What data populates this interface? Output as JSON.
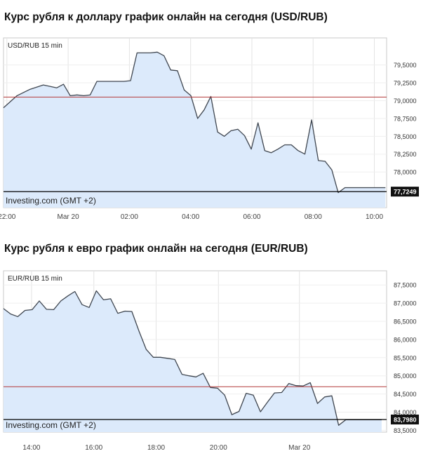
{
  "charts": [
    {
      "title": "Курс рубля к доллару график онлайн на сегодня (USD/RUB)",
      "instrument_label": "USD/RUB 15 min",
      "watermark": "Investing.com (GMT +2)",
      "current_value_label": "77,7249",
      "colors": {
        "line": "#3f4650",
        "fill": "#dceafb",
        "ref_line": "#b33a3a",
        "grid": "#e3e3e3"
      }
    },
    {
      "title": "Курс рубля к евро график онлайн на сегодня (EUR/RUB)",
      "instrument_label": "EUR/RUB 15 min",
      "watermark": "Investing.com (GMT +2)",
      "current_value_label": "83,7980",
      "colors": {
        "line": "#3f4650",
        "fill": "#dceafb",
        "ref_line": "#b33a3a",
        "grid": "#e3e3e3"
      }
    }
  ],
  "chart_data": [
    {
      "type": "area",
      "title": "Курс рубля к доллару график онлайн на сегодня (USD/RUB)",
      "series_label": "USD/RUB 15 min",
      "xlim": [
        -0.11,
        12.4
      ],
      "ylim": [
        77.5,
        79.88
      ],
      "x_ticks": [
        {
          "x": 0,
          "label": "22:00"
        },
        {
          "x": 2,
          "label": "Mar 20"
        },
        {
          "x": 4,
          "label": "02:00"
        },
        {
          "x": 6,
          "label": "04:00"
        },
        {
          "x": 8,
          "label": "06:00"
        },
        {
          "x": 10,
          "label": "08:00"
        },
        {
          "x": 12,
          "label": "10:00"
        }
      ],
      "y_ticks": [
        78.0,
        78.25,
        78.5,
        78.75,
        79.0,
        79.25,
        79.5
      ],
      "y_tick_labels": [
        "78,0000",
        "78,2500",
        "78,5000",
        "78,7500",
        "79,0000",
        "79,2500",
        "79,5000"
      ],
      "reference_line": 79.05,
      "last_value": 77.7249,
      "x": [
        -0.11,
        0.33,
        0.76,
        1.19,
        1.41,
        1.63,
        1.85,
        2.07,
        2.29,
        2.51,
        2.72,
        2.94,
        3.16,
        3.38,
        3.6,
        3.82,
        4.04,
        4.25,
        4.47,
        4.69,
        4.91,
        5.13,
        5.35,
        5.57,
        5.79,
        6.01,
        6.23,
        6.44,
        6.66,
        6.88,
        7.1,
        7.32,
        7.54,
        7.76,
        7.98,
        8.2,
        8.42,
        8.63,
        8.85,
        9.07,
        9.29,
        9.51,
        9.73,
        9.95,
        10.17,
        10.39,
        10.61,
        10.82,
        11.04,
        11.26,
        11.48,
        11.7,
        11.92,
        12.14,
        12.36
      ],
      "y": [
        78.9,
        79.07,
        79.16,
        79.22,
        79.2,
        79.18,
        79.23,
        79.07,
        79.08,
        79.07,
        79.08,
        79.27,
        79.27,
        79.27,
        79.27,
        79.27,
        79.28,
        79.67,
        79.67,
        79.67,
        79.68,
        79.63,
        79.43,
        79.42,
        79.15,
        79.07,
        78.75,
        78.87,
        79.06,
        78.56,
        78.5,
        78.58,
        78.6,
        78.51,
        78.32,
        78.69,
        78.3,
        78.27,
        78.32,
        78.38,
        78.38,
        78.3,
        78.25,
        78.73,
        78.16,
        78.15,
        78.03,
        77.71,
        77.78,
        77.78,
        77.78,
        77.78,
        77.78,
        77.78,
        77.78
      ]
    },
    {
      "type": "area",
      "title": "Курс рубля к евро график онлайн на сегодня (EUR/RUB)",
      "series_label": "EUR/RUB 15 min",
      "xlim": [
        -0.9,
        11.4
      ],
      "ylim": [
        83.45,
        87.89
      ],
      "x_ticks": [
        {
          "x": 0,
          "label": "14:00"
        },
        {
          "x": 2,
          "label": "16:00"
        },
        {
          "x": 4,
          "label": "18:00"
        },
        {
          "x": 6,
          "label": "20:00"
        },
        {
          "x": 8.6,
          "label": "Mar 20"
        }
      ],
      "y_ticks": [
        83.5,
        84.0,
        84.5,
        85.0,
        85.5,
        86.0,
        86.5,
        87.0,
        87.5
      ],
      "y_tick_labels": [
        "83,5000",
        "84,0000",
        "84,5000",
        "85,0000",
        "85,5000",
        "86,0000",
        "86,5000",
        "87,0000",
        "87,5000"
      ],
      "reference_line": 84.7,
      "last_value": 83.798,
      "x": [
        -0.9,
        -0.67,
        -0.44,
        -0.21,
        0.02,
        0.25,
        0.48,
        0.71,
        0.94,
        1.17,
        1.39,
        1.62,
        1.85,
        2.08,
        2.31,
        2.54,
        2.77,
        3.0,
        3.22,
        3.45,
        3.68,
        3.91,
        4.14,
        4.37,
        4.6,
        4.83,
        5.06,
        5.28,
        5.51,
        5.74,
        5.97,
        6.2,
        6.43,
        6.66,
        6.89,
        7.12,
        7.35,
        7.57,
        7.8,
        8.03,
        8.26,
        8.49,
        8.72,
        8.95,
        9.18,
        9.41,
        9.64,
        9.86,
        10.09,
        10.32,
        10.55,
        10.78,
        11.01,
        11.24
      ],
      "y": [
        86.85,
        86.7,
        86.63,
        86.8,
        86.82,
        87.06,
        86.83,
        86.82,
        87.06,
        87.2,
        87.32,
        86.96,
        86.88,
        87.34,
        87.09,
        87.12,
        86.72,
        86.78,
        86.77,
        86.23,
        85.73,
        85.51,
        85.51,
        85.48,
        85.45,
        85.04,
        85.0,
        84.97,
        85.07,
        84.68,
        84.66,
        84.47,
        83.93,
        84.02,
        84.52,
        84.47,
        84.01,
        84.27,
        84.53,
        84.54,
        84.79,
        84.73,
        84.72,
        84.81,
        84.24,
        84.42,
        84.45,
        83.64,
        83.79,
        83.79,
        83.79,
        83.79,
        83.79,
        83.79
      ]
    }
  ]
}
